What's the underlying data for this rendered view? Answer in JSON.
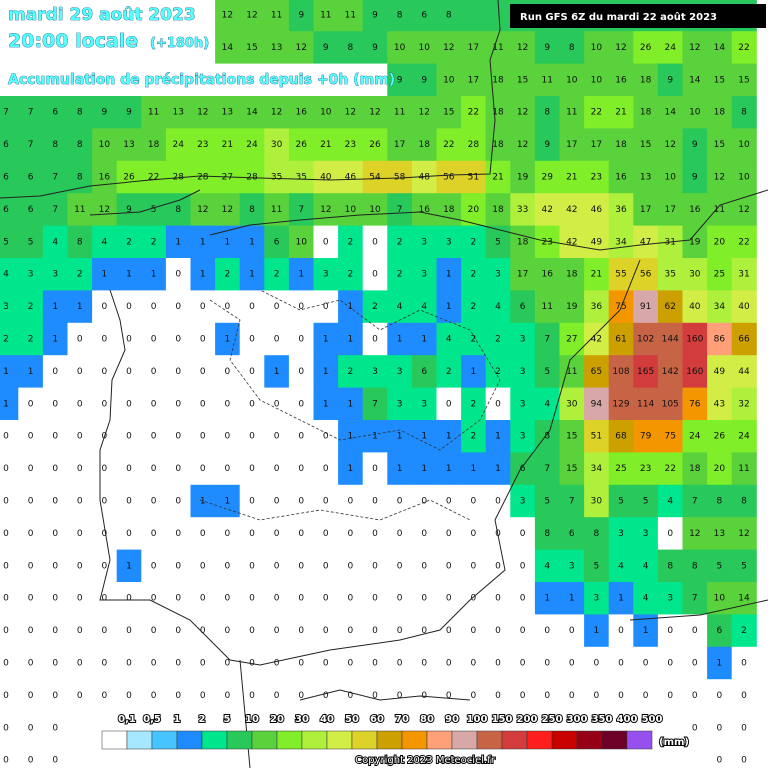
{
  "header": {
    "date": "mardi 29 août 2023",
    "time": "20:00 locale",
    "lead": "(+180h)",
    "subtitle": "Accumulation de précipitations depuis +0h (mm)",
    "run": "Run GFS 6Z du mardi 22 août 2023"
  },
  "grid": {
    "rows": [
      [
        null,
        null,
        null,
        null,
        null,
        null,
        null,
        null,
        null,
        12,
        12,
        11,
        9,
        11,
        11,
        9,
        8,
        6,
        8,
        null,
        null,
        null,
        null,
        null,
        null,
        null,
        null,
        null,
        null,
        null,
        null
      ],
      [
        null,
        null,
        null,
        null,
        null,
        null,
        null,
        null,
        null,
        14,
        15,
        13,
        12,
        9,
        8,
        9,
        10,
        10,
        12,
        17,
        11,
        12,
        9,
        8,
        10,
        12,
        26,
        24,
        12,
        14,
        22
      ],
      [
        null,
        null,
        null,
        null,
        null,
        null,
        null,
        null,
        null,
        null,
        null,
        null,
        null,
        null,
        null,
        null,
        9,
        9,
        10,
        17,
        18,
        15,
        11,
        10,
        10,
        16,
        18,
        9,
        14,
        15,
        15
      ],
      [
        7,
        7,
        6,
        8,
        9,
        9,
        11,
        13,
        12,
        13,
        14,
        12,
        16,
        10,
        12,
        12,
        11,
        12,
        15,
        22,
        18,
        12,
        8,
        11,
        22,
        21,
        18,
        14,
        10,
        18,
        8
      ],
      [
        6,
        7,
        8,
        8,
        10,
        13,
        18,
        24,
        23,
        21,
        24,
        30,
        26,
        21,
        23,
        26,
        17,
        18,
        22,
        28,
        18,
        12,
        9,
        17,
        17,
        18,
        15,
        12,
        9,
        15,
        10
      ],
      [
        6,
        6,
        7,
        8,
        16,
        26,
        22,
        28,
        28,
        27,
        28,
        35,
        35,
        40,
        46,
        54,
        58,
        48,
        56,
        51,
        21,
        19,
        29,
        21,
        23,
        16,
        13,
        10,
        9,
        12,
        10
      ],
      [
        6,
        6,
        7,
        11,
        12,
        9,
        5,
        8,
        12,
        12,
        8,
        11,
        7,
        12,
        10,
        10,
        7,
        16,
        18,
        20,
        18,
        33,
        42,
        42,
        46,
        36,
        17,
        17,
        16,
        11,
        12
      ],
      [
        5,
        5,
        4,
        8,
        4,
        2,
        2,
        1,
        1,
        1,
        1,
        6,
        10,
        0,
        2,
        0,
        2,
        3,
        3,
        2,
        5,
        18,
        23,
        42,
        49,
        34,
        47,
        31,
        19,
        20,
        22
      ],
      [
        4,
        3,
        3,
        2,
        1,
        1,
        1,
        0,
        1,
        2,
        1,
        2,
        1,
        3,
        2,
        0,
        2,
        3,
        1,
        2,
        3,
        17,
        16,
        18,
        21,
        55,
        56,
        35,
        30,
        25,
        31
      ],
      [
        3,
        2,
        1,
        1,
        0,
        0,
        0,
        0,
        0,
        0,
        0,
        0,
        0,
        0,
        1,
        2,
        4,
        4,
        1,
        2,
        4,
        6,
        11,
        19,
        36,
        75,
        91,
        62,
        40,
        34,
        40
      ],
      [
        2,
        2,
        1,
        0,
        0,
        0,
        0,
        0,
        0,
        1,
        0,
        0,
        0,
        1,
        1,
        0,
        1,
        1,
        4,
        2,
        2,
        3,
        7,
        27,
        42,
        61,
        102,
        144,
        160,
        86,
        66
      ],
      [
        1,
        1,
        0,
        0,
        0,
        0,
        0,
        0,
        0,
        0,
        0,
        1,
        0,
        1,
        2,
        3,
        3,
        6,
        2,
        1,
        2,
        3,
        5,
        11,
        65,
        108,
        165,
        142,
        160,
        49,
        44
      ],
      [
        1,
        0,
        0,
        0,
        0,
        0,
        0,
        0,
        0,
        0,
        0,
        0,
        0,
        1,
        1,
        7,
        3,
        3,
        0,
        2,
        0,
        3,
        4,
        30,
        94,
        129,
        114,
        105,
        76,
        43,
        32
      ],
      [
        0,
        0,
        0,
        0,
        0,
        0,
        0,
        0,
        0,
        0,
        0,
        0,
        0,
        0,
        1,
        1,
        1,
        1,
        1,
        2,
        1,
        3,
        8,
        15,
        51,
        68,
        79,
        75,
        24,
        26,
        24
      ],
      [
        0,
        0,
        0,
        0,
        0,
        0,
        0,
        0,
        0,
        0,
        0,
        0,
        0,
        0,
        1,
        0,
        1,
        1,
        1,
        1,
        1,
        6,
        7,
        15,
        34,
        25,
        23,
        22,
        18,
        20,
        11
      ],
      [
        0,
        0,
        0,
        0,
        0,
        0,
        0,
        0,
        1,
        1,
        0,
        0,
        0,
        0,
        0,
        0,
        0,
        0,
        0,
        0,
        0,
        3,
        5,
        7,
        30,
        5,
        5,
        4,
        7,
        8,
        8
      ],
      [
        0,
        0,
        0,
        0,
        0,
        0,
        0,
        0,
        0,
        0,
        0,
        0,
        0,
        0,
        0,
        0,
        0,
        0,
        0,
        0,
        0,
        0,
        8,
        6,
        8,
        3,
        3,
        0,
        12,
        13,
        12
      ],
      [
        0,
        0,
        0,
        0,
        0,
        1,
        0,
        0,
        0,
        0,
        0,
        0,
        0,
        0,
        0,
        0,
        0,
        0,
        0,
        0,
        0,
        0,
        4,
        3,
        5,
        4,
        4,
        8,
        8,
        5,
        5
      ],
      [
        0,
        0,
        0,
        0,
        0,
        0,
        0,
        0,
        0,
        0,
        0,
        0,
        0,
        0,
        0,
        0,
        0,
        0,
        0,
        0,
        0,
        0,
        1,
        1,
        3,
        1,
        4,
        3,
        7,
        10,
        14
      ],
      [
        0,
        0,
        0,
        0,
        0,
        0,
        0,
        0,
        0,
        0,
        0,
        0,
        0,
        0,
        0,
        0,
        0,
        0,
        0,
        0,
        0,
        0,
        0,
        0,
        1,
        0,
        1,
        0,
        0,
        6,
        2
      ],
      [
        0,
        0,
        0,
        0,
        0,
        0,
        0,
        0,
        0,
        0,
        0,
        0,
        0,
        0,
        0,
        0,
        0,
        0,
        0,
        0,
        0,
        0,
        0,
        0,
        0,
        0,
        0,
        0,
        0,
        1,
        0
      ],
      [
        0,
        0,
        0,
        0,
        0,
        0,
        0,
        0,
        0,
        0,
        0,
        0,
        0,
        0,
        0,
        0,
        0,
        0,
        0,
        0,
        0,
        0,
        0,
        0,
        0,
        0,
        0,
        0,
        0,
        0,
        0
      ],
      [
        0,
        0,
        0,
        null,
        null,
        null,
        null,
        null,
        null,
        null,
        null,
        null,
        null,
        null,
        null,
        null,
        null,
        null,
        null,
        null,
        null,
        null,
        null,
        null,
        null,
        null,
        null,
        null,
        0,
        0,
        0
      ],
      [
        0,
        0,
        0,
        null,
        null,
        null,
        null,
        null,
        null,
        null,
        null,
        null,
        null,
        null,
        null,
        null,
        null,
        null,
        null,
        null,
        null,
        null,
        null,
        null,
        null,
        null,
        null,
        null,
        null,
        0,
        0
      ]
    ]
  },
  "legend": {
    "unit": "(mm)",
    "items": [
      {
        "value": 0.1,
        "label": "0,1"
      },
      {
        "value": 0.5,
        "label": "0,5"
      },
      1,
      2,
      5,
      10,
      20,
      30,
      40,
      50,
      60,
      70,
      80,
      90,
      100,
      150,
      200,
      250,
      300,
      350,
      400,
      500
    ],
    "colors": [
      "#ffffff",
      "#a6e8ff",
      "#46c4ff",
      "#1e8cff",
      "#00e68c",
      "#28c85a",
      "#5ad23c",
      "#80ee28",
      "#aef03c",
      "#d2ee46",
      "#dcd228",
      "#cca000",
      "#f39600",
      "#ffa078",
      "#d8a8a8",
      "#c86446",
      "#d23c3c",
      "#ff1e1e",
      "#c80000",
      "#960014",
      "#6e0028",
      "#9650f0"
    ]
  },
  "footer": {
    "copyright": "Copyright 2023 Meteociel.fr"
  }
}
